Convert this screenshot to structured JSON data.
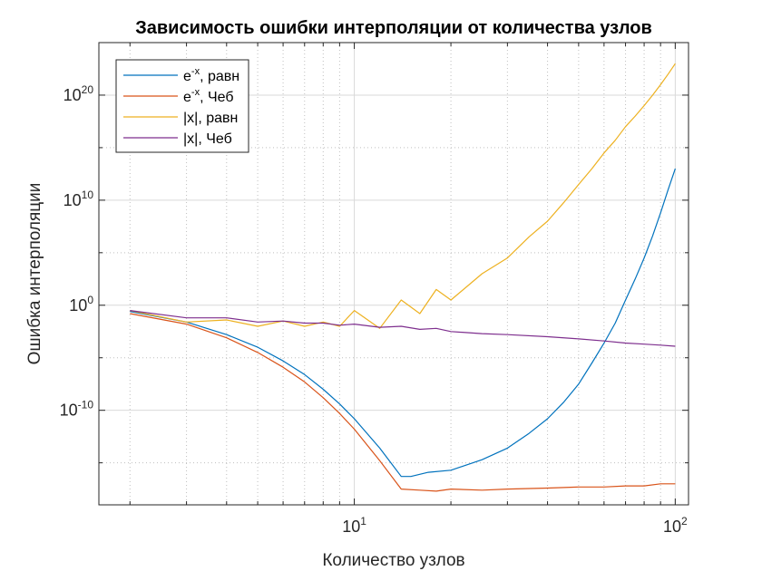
{
  "chart_data": {
    "type": "line",
    "title": "Зависимость ошибки интерполяции от количества узлов",
    "xlabel": "Количество узлов",
    "ylabel": "Ошибка интерполяции",
    "xscale": "log",
    "yscale": "log",
    "xlim": [
      1.6,
      110
    ],
    "ylim_exponents": [
      -19,
      25
    ],
    "x_ticks": [
      {
        "base": "10",
        "exp": "1",
        "value": 10
      },
      {
        "base": "10",
        "exp": "2",
        "value": 100
      }
    ],
    "y_ticks": [
      {
        "base": "10",
        "exp": "-10",
        "value": -10
      },
      {
        "base": "10",
        "exp": "0",
        "value": 0
      },
      {
        "base": "10",
        "exp": "10",
        "value": 10
      },
      {
        "base": "10",
        "exp": "20",
        "value": 20
      }
    ],
    "grid": true,
    "box": true,
    "legend_location": "top-left",
    "series": [
      {
        "name": "e^-x, равн",
        "legend_base": "e",
        "legend_sup": "-x",
        "legend_rest": ", равн",
        "color": "#0072BD",
        "log10_error_points": [
          [
            2,
            -0.6
          ],
          [
            3,
            -1.6
          ],
          [
            4,
            -2.8
          ],
          [
            5,
            -4.0
          ],
          [
            6,
            -5.3
          ],
          [
            7,
            -6.6
          ],
          [
            8,
            -8.0
          ],
          [
            9,
            -9.4
          ],
          [
            10,
            -10.8
          ],
          [
            12,
            -13.6
          ],
          [
            14,
            -16.3
          ],
          [
            15,
            -16.3
          ],
          [
            17,
            -15.9
          ],
          [
            20,
            -15.7
          ],
          [
            25,
            -14.7
          ],
          [
            30,
            -13.6
          ],
          [
            35,
            -12.2
          ],
          [
            40,
            -10.8
          ],
          [
            45,
            -9.2
          ],
          [
            50,
            -7.5
          ],
          [
            55,
            -5.5
          ],
          [
            60,
            -3.6
          ],
          [
            65,
            -1.7
          ],
          [
            70,
            0.5
          ],
          [
            75,
            2.5
          ],
          [
            80,
            4.5
          ],
          [
            85,
            6.6
          ],
          [
            90,
            8.8
          ],
          [
            95,
            11.0
          ],
          [
            100,
            13.0
          ]
        ]
      },
      {
        "name": "e^-x, Чеб",
        "legend_base": "e",
        "legend_sup": "-x",
        "legend_rest": ", Чеб",
        "color": "#D95319",
        "log10_error_points": [
          [
            2,
            -0.8
          ],
          [
            3,
            -1.8
          ],
          [
            4,
            -3.1
          ],
          [
            5,
            -4.5
          ],
          [
            6,
            -5.9
          ],
          [
            7,
            -7.3
          ],
          [
            8,
            -8.8
          ],
          [
            9,
            -10.3
          ],
          [
            10,
            -11.8
          ],
          [
            12,
            -14.8
          ],
          [
            14,
            -17.5
          ],
          [
            16,
            -17.6
          ],
          [
            18,
            -17.7
          ],
          [
            20,
            -17.5
          ],
          [
            25,
            -17.6
          ],
          [
            30,
            -17.5
          ],
          [
            40,
            -17.4
          ],
          [
            50,
            -17.3
          ],
          [
            60,
            -17.3
          ],
          [
            70,
            -17.2
          ],
          [
            80,
            -17.2
          ],
          [
            90,
            -17.0
          ],
          [
            100,
            -17.0
          ]
        ]
      },
      {
        "name": "|x|, равн",
        "legend_base": "|x|, равн",
        "legend_sup": "",
        "legend_rest": "",
        "color": "#EDB120",
        "log10_error_points": [
          [
            2,
            -0.5
          ],
          [
            3,
            -1.6
          ],
          [
            4,
            -1.4
          ],
          [
            5,
            -2.0
          ],
          [
            6,
            -1.5
          ],
          [
            7,
            -2.0
          ],
          [
            8,
            -1.6
          ],
          [
            9,
            -2.0
          ],
          [
            10,
            -0.5
          ],
          [
            12,
            -2.2
          ],
          [
            14,
            0.5
          ],
          [
            16,
            -0.8
          ],
          [
            18,
            1.5
          ],
          [
            20,
            0.5
          ],
          [
            25,
            3.0
          ],
          [
            30,
            4.5
          ],
          [
            35,
            6.5
          ],
          [
            40,
            8.0
          ],
          [
            45,
            9.8
          ],
          [
            50,
            11.5
          ],
          [
            55,
            13.0
          ],
          [
            60,
            14.5
          ],
          [
            65,
            15.7
          ],
          [
            70,
            17.0
          ],
          [
            75,
            18.0
          ],
          [
            80,
            19.0
          ],
          [
            85,
            20.0
          ],
          [
            90,
            21.0
          ],
          [
            95,
            22.0
          ],
          [
            100,
            23.0
          ]
        ]
      },
      {
        "name": "|x|, Чеб",
        "legend_base": "|x|, Чеб",
        "legend_sup": "",
        "legend_rest": "",
        "color": "#7E2F8E",
        "log10_error_points": [
          [
            2,
            -0.5
          ],
          [
            3,
            -1.2
          ],
          [
            4,
            -1.2
          ],
          [
            5,
            -1.6
          ],
          [
            6,
            -1.5
          ],
          [
            7,
            -1.7
          ],
          [
            8,
            -1.7
          ],
          [
            9,
            -1.9
          ],
          [
            10,
            -1.8
          ],
          [
            12,
            -2.1
          ],
          [
            14,
            -2.0
          ],
          [
            16,
            -2.3
          ],
          [
            18,
            -2.2
          ],
          [
            20,
            -2.5
          ],
          [
            25,
            -2.7
          ],
          [
            30,
            -2.8
          ],
          [
            40,
            -3.0
          ],
          [
            50,
            -3.2
          ],
          [
            60,
            -3.4
          ],
          [
            70,
            -3.6
          ],
          [
            80,
            -3.7
          ],
          [
            90,
            -3.8
          ],
          [
            100,
            -3.9
          ]
        ]
      }
    ]
  }
}
